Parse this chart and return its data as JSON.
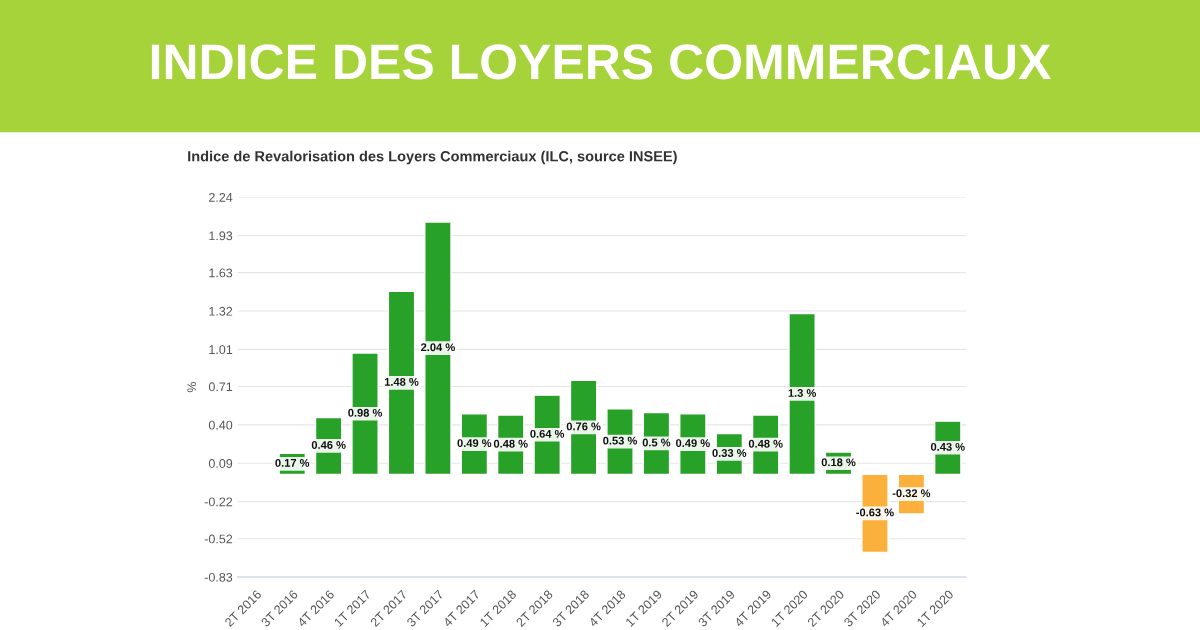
{
  "chart_data": {
    "type": "bar",
    "title": "INDICE DES LOYERS COMMERCIAUX",
    "subtitle": "Indice de Revalorisation des Loyers Commerciaux (ILC, source INSEE)",
    "ylabel": "%",
    "categories": [
      "2T 2016",
      "3T 2016",
      "4T 2016",
      "1T 2017",
      "2T 2017",
      "3T 2017",
      "4T 2017",
      "1T 2018",
      "2T 2018",
      "3T 2018",
      "4T 2018",
      "1T 2019",
      "2T 2019",
      "3T 2019",
      "4T 2019",
      "1T 2020",
      "2T 2020",
      "3T 2020",
      "4T 2020",
      "1T 2020"
    ],
    "values": [
      null,
      0.17,
      0.46,
      0.98,
      1.48,
      2.04,
      0.49,
      0.48,
      0.64,
      0.76,
      0.53,
      0.5,
      0.49,
      0.33,
      0.48,
      1.3,
      0.18,
      -0.63,
      -0.32,
      0.43
    ],
    "colors": [
      "#27a127",
      "#27a127",
      "#27a127",
      "#27a127",
      "#27a127",
      "#27a127",
      "#27a127",
      "#27a127",
      "#27a127",
      "#27a127",
      "#27a127",
      "#27a127",
      "#27a127",
      "#27a127",
      "#27a127",
      "#27a127",
      "#27a127",
      "#fbb03b",
      "#fbb03b",
      "#27a127"
    ],
    "value_labels": [
      null,
      "0.17 %",
      "0.46 %",
      "0.98 %",
      "1.48 %",
      "2.04 %",
      "0.49 %",
      "0.48 %",
      "0.64 %",
      "0.76 %",
      "0.53 %",
      "0.5 %",
      "0.49 %",
      "0.33 %",
      "0.48 %",
      "1.3 %",
      "0.18 %",
      "-0.63 %",
      "-0.32 %",
      "0.43 %"
    ],
    "ylim": [
      -0.83,
      2.24
    ],
    "yticks": [
      {
        "value": 2.24,
        "label": "2.24"
      },
      {
        "value": 1.93,
        "label": "1.93"
      },
      {
        "value": 1.63,
        "label": "1.63"
      },
      {
        "value": 1.32,
        "label": "1.32"
      },
      {
        "value": 1.01,
        "label": "1.01"
      },
      {
        "value": 0.71,
        "label": "0.71"
      },
      {
        "value": 0.4,
        "label": "0.40"
      },
      {
        "value": 0.09,
        "label": "0.09"
      },
      {
        "value": -0.22,
        "label": "-0.22"
      },
      {
        "value": -0.52,
        "label": "-0.52"
      },
      {
        "value": -0.83,
        "label": "-0.83"
      }
    ],
    "grid": "y",
    "legend": false
  }
}
